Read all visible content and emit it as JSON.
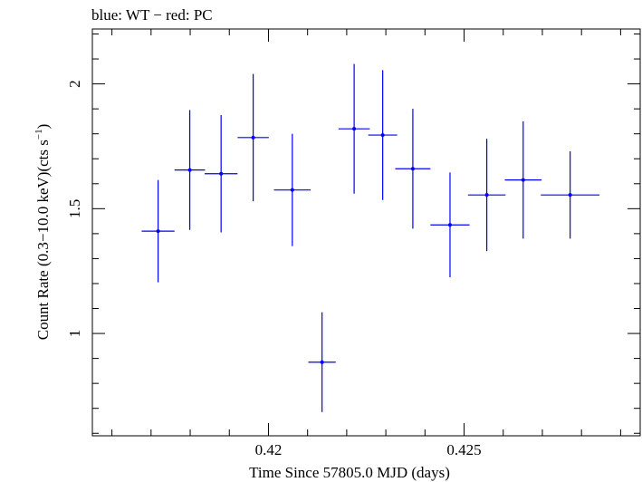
{
  "chart_data": {
    "type": "scatter",
    "title": "blue: WT − red: PC",
    "xlabel": "Time Since 57805.0 MJD (days)",
    "ylabel_main": "Count Rate (0.3−10.0 keV)(cts s",
    "ylabel_sup": "−1",
    "ylabel_tail": ")",
    "xlim": [
      0.4155,
      0.4295
    ],
    "ylim": [
      0.59,
      2.22
    ],
    "x_ticks_major": [
      0.42,
      0.425
    ],
    "x_tick_labels": [
      "0.42",
      "0.425"
    ],
    "y_ticks_major": [
      1,
      1.5,
      2
    ],
    "y_tick_labels": [
      "1",
      "1.5",
      "2"
    ],
    "color": "#0000ff",
    "series": [
      {
        "points": [
          {
            "x": 0.41718,
            "xerr": 0.00042,
            "y": 1.41,
            "yerr_low": 0.205,
            "yerr_high": 0.205
          },
          {
            "x": 0.41799,
            "xerr": 0.00039,
            "y": 1.655,
            "yerr_low": 0.24,
            "yerr_high": 0.24
          },
          {
            "x": 0.41879,
            "xerr": 0.00042,
            "y": 1.64,
            "yerr_low": 0.235,
            "yerr_high": 0.235
          },
          {
            "x": 0.41961,
            "xerr": 0.0004,
            "y": 1.785,
            "yerr_low": 0.255,
            "yerr_high": 0.255
          },
          {
            "x": 0.42061,
            "xerr": 0.00047,
            "y": 1.575,
            "yerr_low": 0.225,
            "yerr_high": 0.225
          },
          {
            "x": 0.42137,
            "xerr": 0.00035,
            "y": 0.885,
            "yerr_low": 0.2,
            "yerr_high": 0.2
          },
          {
            "x": 0.42219,
            "xerr": 0.0004,
            "y": 1.82,
            "yerr_low": 0.26,
            "yerr_high": 0.26
          },
          {
            "x": 0.42292,
            "xerr": 0.00037,
            "y": 1.795,
            "yerr_low": 0.26,
            "yerr_high": 0.26
          },
          {
            "x": 0.42369,
            "xerr": 0.00045,
            "y": 1.66,
            "yerr_low": 0.24,
            "yerr_high": 0.24
          },
          {
            "x": 0.42464,
            "xerr": 0.0005,
            "y": 1.435,
            "yerr_low": 0.21,
            "yerr_high": 0.21
          },
          {
            "x": 0.42558,
            "xerr": 0.00048,
            "y": 1.555,
            "yerr_low": 0.225,
            "yerr_high": 0.225
          },
          {
            "x": 0.42651,
            "xerr": 0.00047,
            "y": 1.615,
            "yerr_low": 0.235,
            "yerr_high": 0.235
          },
          {
            "x": 0.42771,
            "xerr": 0.00075,
            "y": 1.555,
            "yerr_low": 0.175,
            "yerr_high": 0.175
          }
        ]
      }
    ]
  }
}
